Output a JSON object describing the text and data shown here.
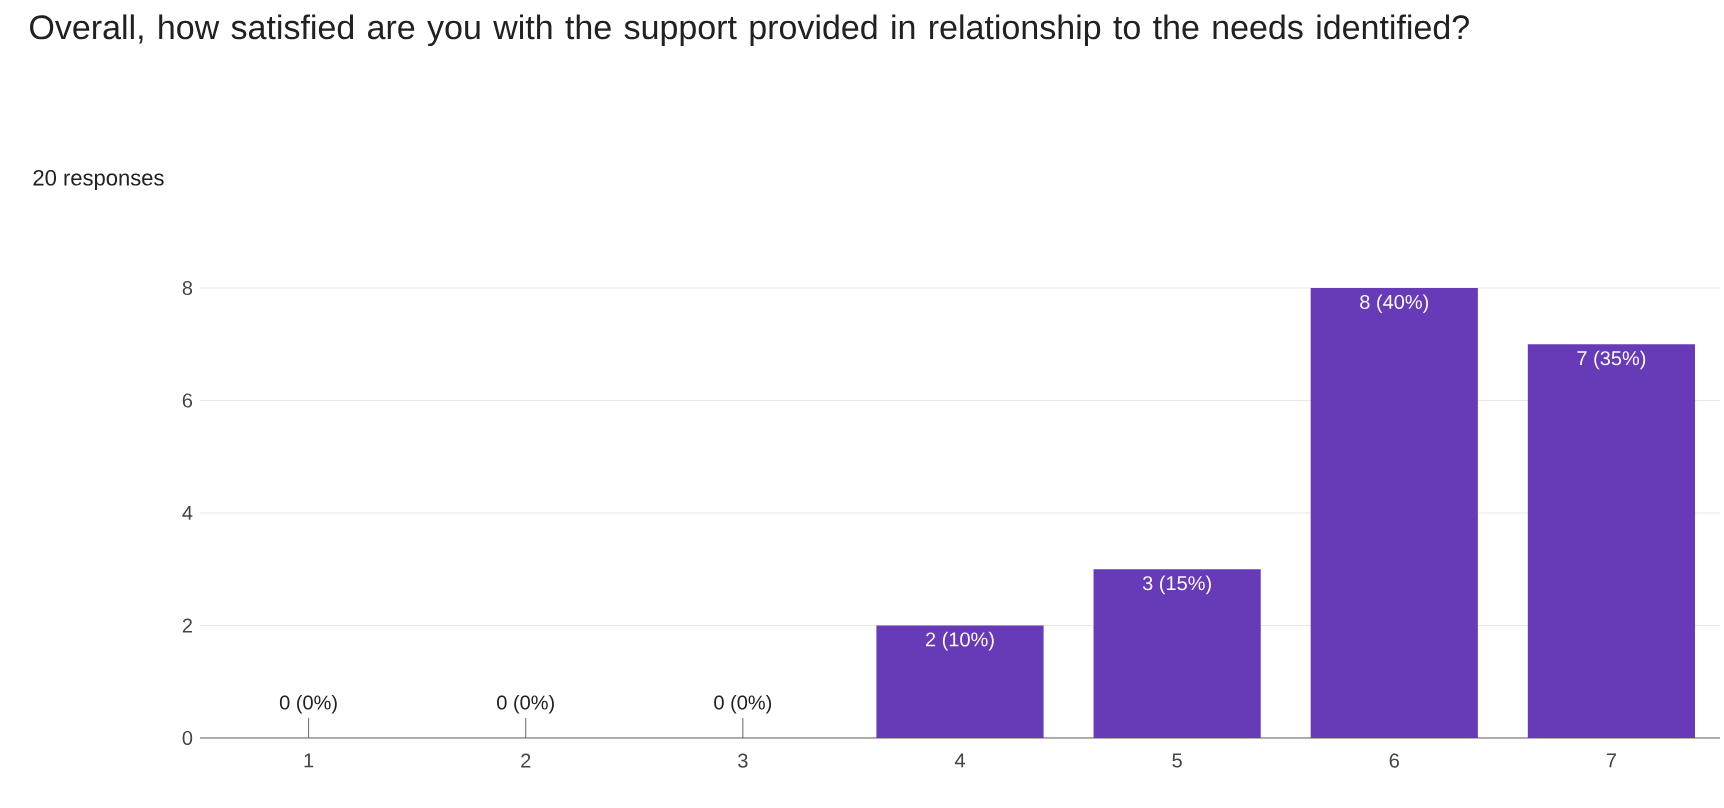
{
  "chart_data": {
    "type": "bar",
    "title": "Overall, how satisfied are you with the support provided in relationship to the needs identified?",
    "subtitle": "20 responses",
    "categories": [
      "1",
      "2",
      "3",
      "4",
      "5",
      "6",
      "7"
    ],
    "values": [
      0,
      0,
      0,
      2,
      3,
      8,
      7
    ],
    "value_labels": [
      "0 (0%)",
      "0 (0%)",
      "0 (0%)",
      "2 (10%)",
      "3 (15%)",
      "8 (40%)",
      "7 (35%)"
    ],
    "color": "#673ab7",
    "ylim": [
      0,
      8
    ],
    "yticks": [
      0,
      2,
      4,
      6,
      8
    ],
    "grid": "y"
  }
}
